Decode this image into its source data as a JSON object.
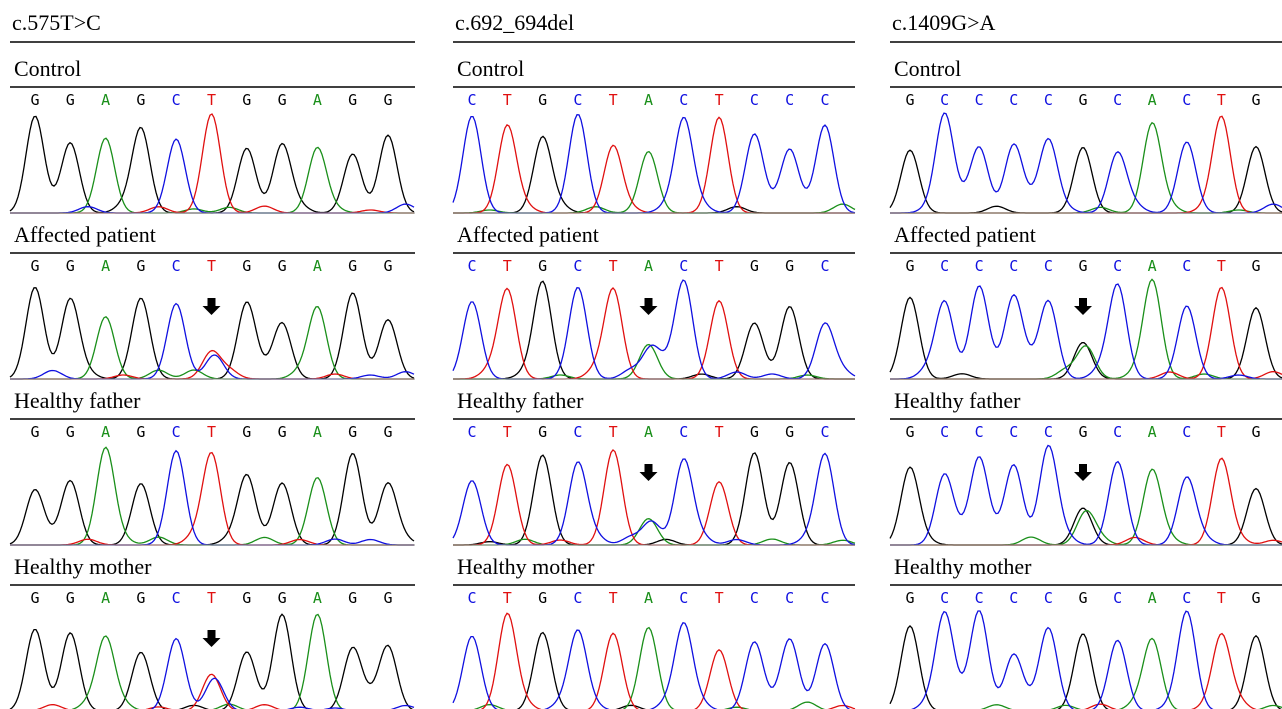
{
  "columns": [
    {
      "title": "c.575T>C",
      "rows": [
        {
          "label": "Control",
          "bases": [
            "G",
            "G",
            "A",
            "G",
            "C",
            "T",
            "G",
            "G",
            "A",
            "G",
            "G"
          ]
        },
        {
          "label": "Affected patient",
          "bases": [
            "G",
            "G",
            "A",
            "G",
            "C",
            "T",
            "G",
            "G",
            "A",
            "G",
            "G"
          ]
        },
        {
          "label": "Healthy father",
          "bases": [
            "G",
            "G",
            "A",
            "G",
            "C",
            "T",
            "G",
            "G",
            "A",
            "G",
            "G"
          ]
        },
        {
          "label": "Healthy mother",
          "bases": [
            "G",
            "G",
            "A",
            "G",
            "C",
            "T",
            "G",
            "G",
            "A",
            "G",
            "G"
          ]
        }
      ]
    },
    {
      "title": "c.692_694del",
      "rows": [
        {
          "label": "Control",
          "bases": [
            "C",
            "T",
            "G",
            "C",
            "T",
            "A",
            "C",
            "T",
            "C",
            "C",
            "C"
          ]
        },
        {
          "label": "Affected patient",
          "bases": [
            "C",
            "T",
            "G",
            "C",
            "T",
            "A",
            "C",
            "T",
            "G",
            "G",
            "C"
          ]
        },
        {
          "label": "Healthy father",
          "bases": [
            "C",
            "T",
            "G",
            "C",
            "T",
            "A",
            "C",
            "T",
            "G",
            "G",
            "C"
          ]
        },
        {
          "label": "Healthy mother",
          "bases": [
            "C",
            "T",
            "G",
            "C",
            "T",
            "A",
            "C",
            "T",
            "C",
            "C",
            "C"
          ]
        }
      ]
    },
    {
      "title": "c.1409G>A",
      "rows": [
        {
          "label": "Control",
          "bases": [
            "G",
            "C",
            "C",
            "C",
            "C",
            "G",
            "C",
            "A",
            "C",
            "T",
            "G"
          ]
        },
        {
          "label": "Affected patient",
          "bases": [
            "G",
            "C",
            "C",
            "C",
            "C",
            "G",
            "C",
            "A",
            "C",
            "T",
            "G"
          ]
        },
        {
          "label": "Healthy father",
          "bases": [
            "G",
            "C",
            "C",
            "C",
            "C",
            "G",
            "C",
            "A",
            "C",
            "T",
            "G"
          ]
        },
        {
          "label": "Healthy mother",
          "bases": [
            "G",
            "C",
            "C",
            "C",
            "C",
            "G",
            "C",
            "A",
            "C",
            "T",
            "G"
          ]
        }
      ]
    }
  ]
}
